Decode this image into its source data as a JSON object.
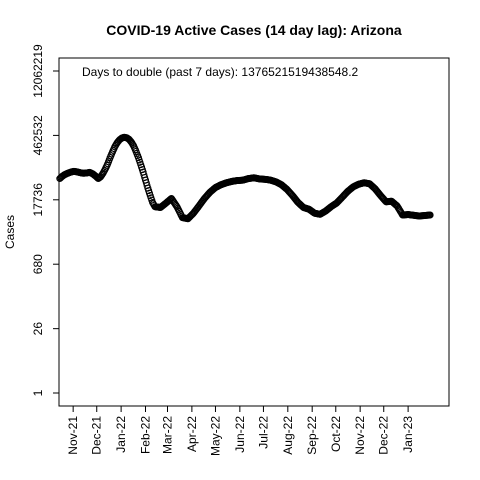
{
  "chart_data": {
    "type": "scatter",
    "title": "COVID-19 Active Cases (14 day lag): Arizona",
    "ylabel": "Cases",
    "xlabel": "",
    "annotation": "Days to double (past 7 days): 1376521519438548.2",
    "y_scale": "log",
    "y_ticks": [
      "1",
      "26",
      "680",
      "17736",
      "462532",
      "12062219"
    ],
    "x_ticks": [
      "Nov-21",
      "Dec-21",
      "Jan-22",
      "Feb-22",
      "Mar-22",
      "Apr-22",
      "May-22",
      "Jun-22",
      "Jul-22",
      "Aug-22",
      "Sep-22",
      "Oct-22",
      "Nov-22",
      "Dec-22",
      "Jan-23"
    ],
    "x_range": [
      "2021-10-14",
      "2023-02-22"
    ],
    "ylim": [
      1,
      12062219
    ],
    "grid": false,
    "marker": "open-circle",
    "series": [
      {
        "points": [
          [
            "2021-10-15",
            52000
          ],
          [
            "2021-10-18",
            58000
          ],
          [
            "2021-10-21",
            63000
          ],
          [
            "2021-10-25",
            68000
          ],
          [
            "2021-10-29",
            72000
          ],
          [
            "2021-11-02",
            75000
          ],
          [
            "2021-11-06",
            73000
          ],
          [
            "2021-11-10",
            70000
          ],
          [
            "2021-11-14",
            68000
          ],
          [
            "2021-11-18",
            69000
          ],
          [
            "2021-11-22",
            71000
          ],
          [
            "2021-11-26",
            66000
          ],
          [
            "2021-11-30",
            58000
          ],
          [
            "2021-12-03",
            52000
          ],
          [
            "2021-12-06",
            57000
          ],
          [
            "2021-12-09",
            68000
          ],
          [
            "2021-12-12",
            85000
          ],
          [
            "2021-12-15",
            110000
          ],
          [
            "2021-12-18",
            150000
          ],
          [
            "2021-12-21",
            200000
          ],
          [
            "2021-12-24",
            260000
          ],
          [
            "2021-12-27",
            320000
          ],
          [
            "2021-12-30",
            370000
          ],
          [
            "2022-01-02",
            405000
          ],
          [
            "2022-01-05",
            420000
          ],
          [
            "2022-01-08",
            410000
          ],
          [
            "2022-01-11",
            380000
          ],
          [
            "2022-01-14",
            330000
          ],
          [
            "2022-01-17",
            270000
          ],
          [
            "2022-01-20",
            205000
          ],
          [
            "2022-01-23",
            150000
          ],
          [
            "2022-01-26",
            105000
          ],
          [
            "2022-01-29",
            72000
          ],
          [
            "2022-02-01",
            48000
          ],
          [
            "2022-02-04",
            32000
          ],
          [
            "2022-02-07",
            22000
          ],
          [
            "2022-02-10",
            15500
          ],
          [
            "2022-02-13",
            12500
          ],
          [
            "2022-02-20",
            12000
          ],
          [
            "2022-02-27",
            15000
          ],
          [
            "2022-03-06",
            19000
          ],
          [
            "2022-03-13",
            12500
          ],
          [
            "2022-03-20",
            7200
          ],
          [
            "2022-03-27",
            6800
          ],
          [
            "2022-04-03",
            9000
          ],
          [
            "2022-04-10",
            13000
          ],
          [
            "2022-04-17",
            19000
          ],
          [
            "2022-04-24",
            26000
          ],
          [
            "2022-05-01",
            33000
          ],
          [
            "2022-05-08",
            38000
          ],
          [
            "2022-05-15",
            42000
          ],
          [
            "2022-05-22",
            45000
          ],
          [
            "2022-05-29",
            47000
          ],
          [
            "2022-06-05",
            48000
          ],
          [
            "2022-06-12",
            52000
          ],
          [
            "2022-06-19",
            54000
          ],
          [
            "2022-06-26",
            51000
          ],
          [
            "2022-07-03",
            50000
          ],
          [
            "2022-07-10",
            48000
          ],
          [
            "2022-07-17",
            44000
          ],
          [
            "2022-07-24",
            38000
          ],
          [
            "2022-07-31",
            30000
          ],
          [
            "2022-08-07",
            22000
          ],
          [
            "2022-08-14",
            15500
          ],
          [
            "2022-08-21",
            12000
          ],
          [
            "2022-08-28",
            11000
          ],
          [
            "2022-09-04",
            9000
          ],
          [
            "2022-09-11",
            8500
          ],
          [
            "2022-09-18",
            10000
          ],
          [
            "2022-09-25",
            12500
          ],
          [
            "2022-10-02",
            15000
          ],
          [
            "2022-10-09",
            20000
          ],
          [
            "2022-10-16",
            27000
          ],
          [
            "2022-10-23",
            34000
          ],
          [
            "2022-10-30",
            39000
          ],
          [
            "2022-11-06",
            42000
          ],
          [
            "2022-11-13",
            40000
          ],
          [
            "2022-11-20",
            31000
          ],
          [
            "2022-11-27",
            22000
          ],
          [
            "2022-12-04",
            16000
          ],
          [
            "2022-12-11",
            16500
          ],
          [
            "2022-12-18",
            13000
          ],
          [
            "2022-12-25",
            8200
          ],
          [
            "2023-01-01",
            8400
          ],
          [
            "2023-01-08",
            8100
          ],
          [
            "2023-01-15",
            7800
          ],
          [
            "2023-01-22",
            8000
          ],
          [
            "2023-01-29",
            8200
          ]
        ]
      }
    ]
  }
}
